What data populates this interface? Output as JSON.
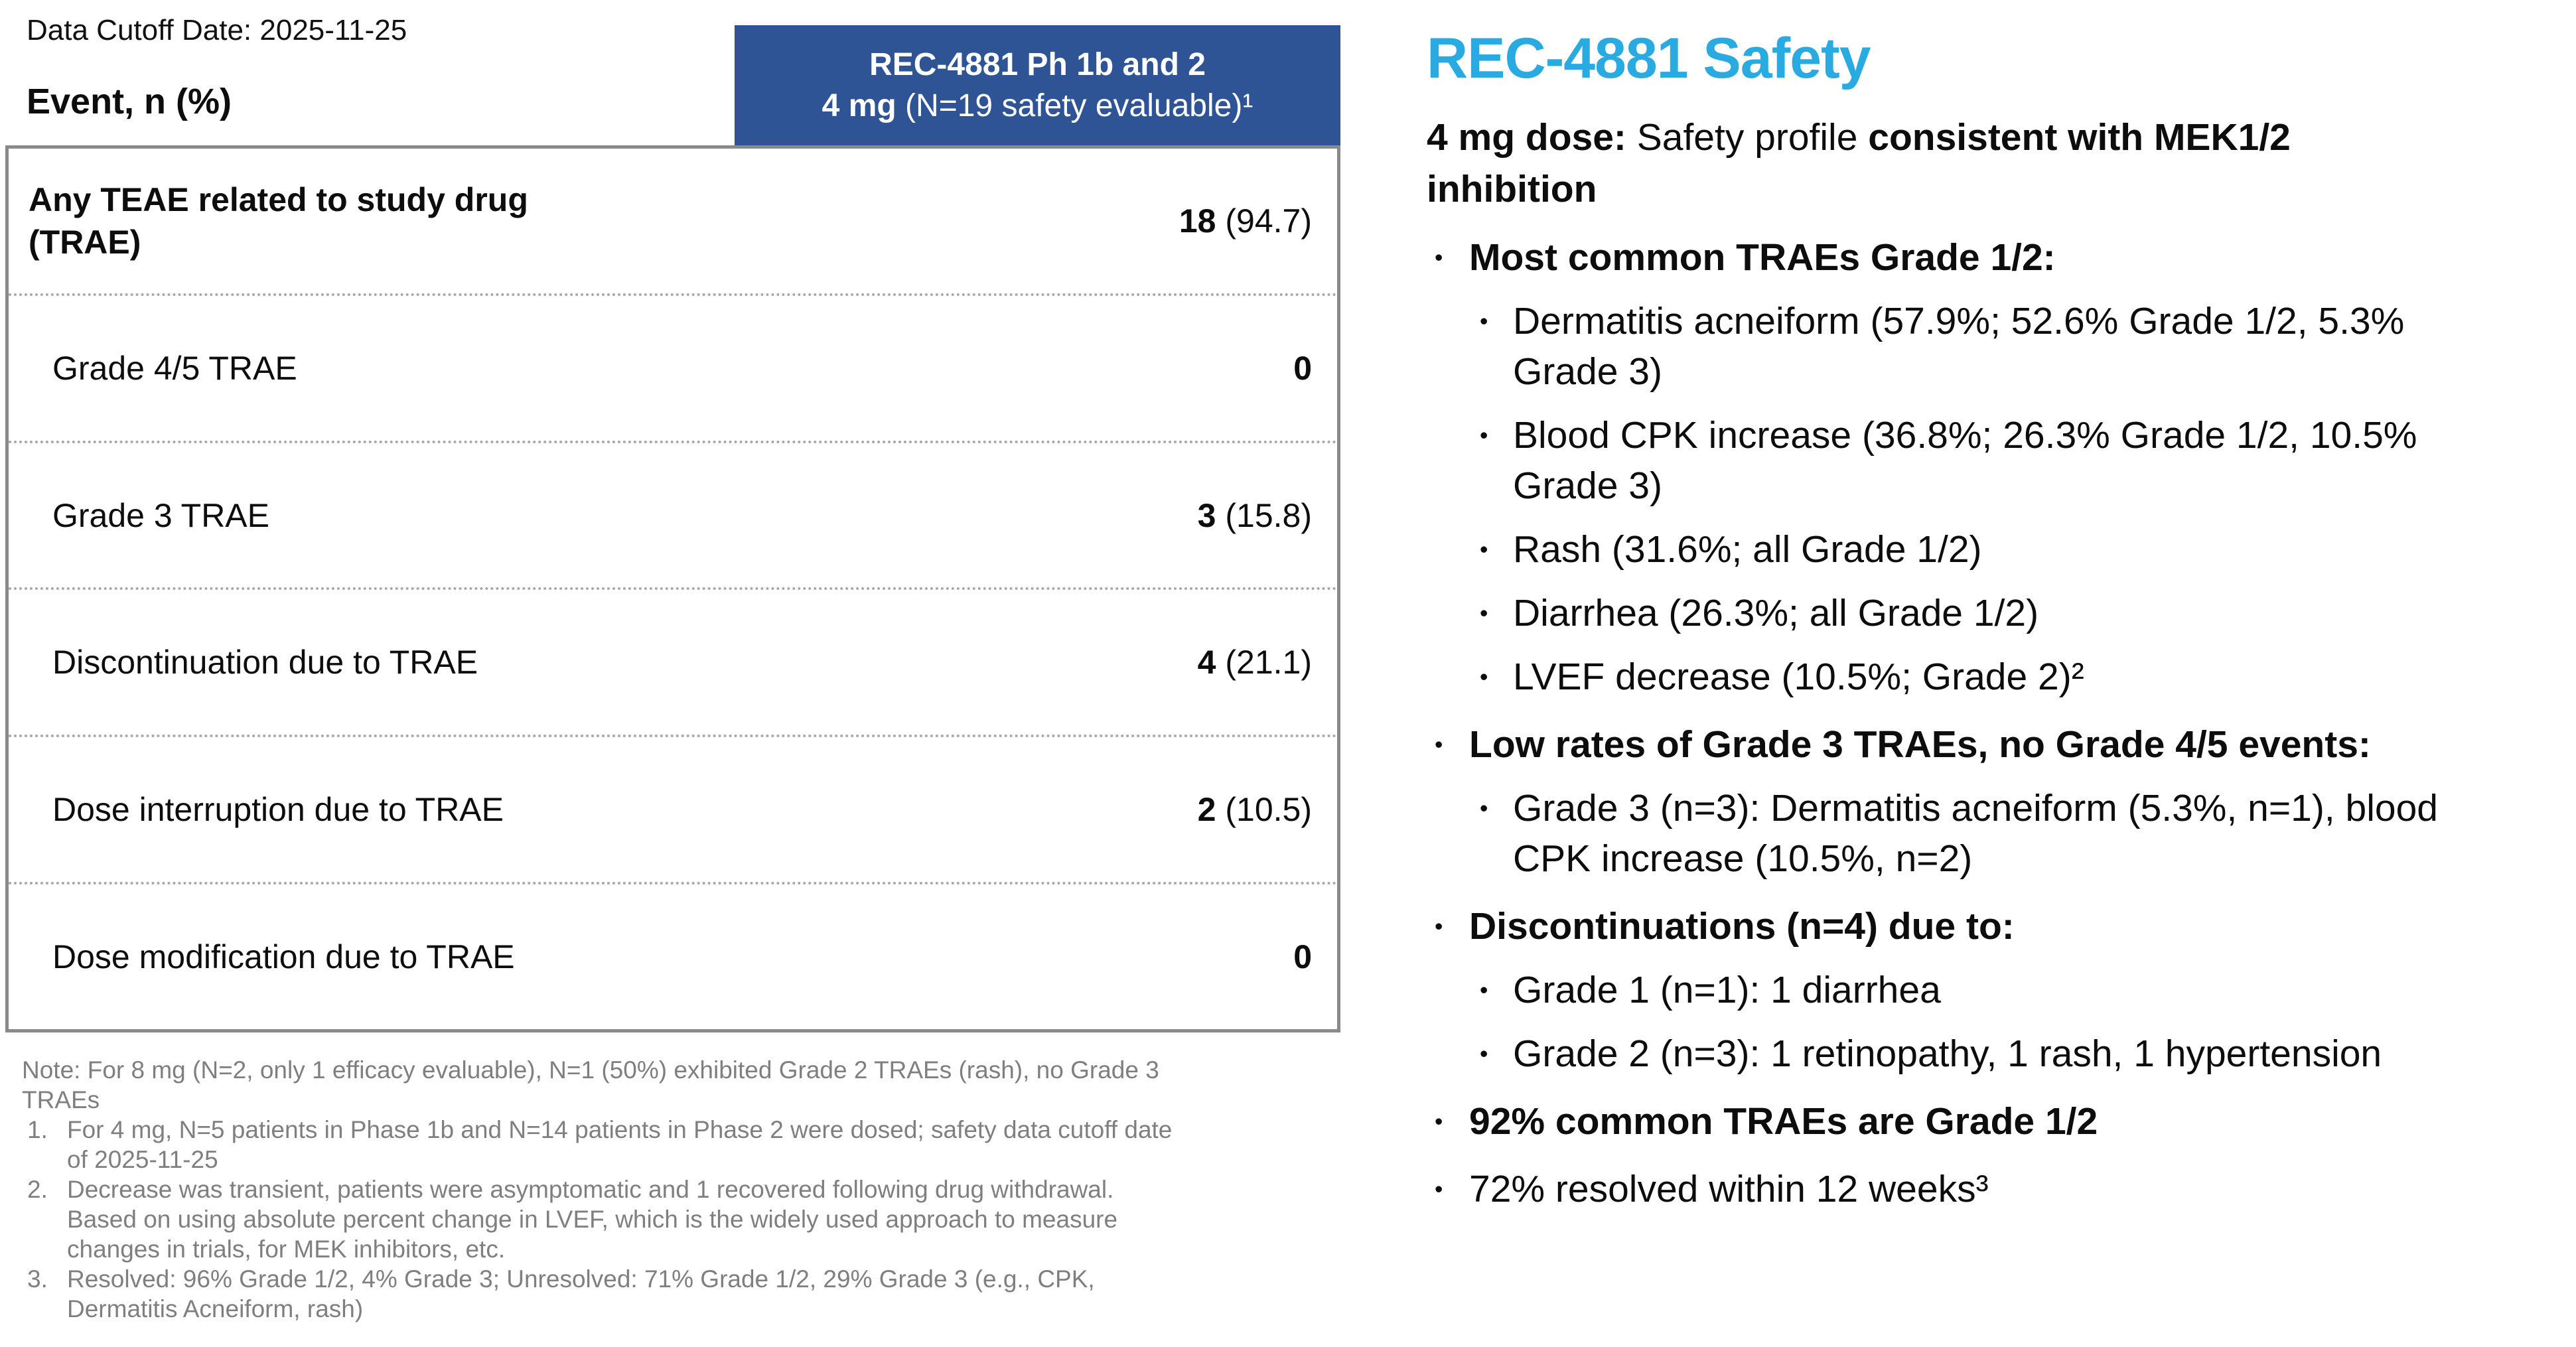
{
  "colors": {
    "header_blue": "#2F5496",
    "title_blue": "#29ABE2",
    "note_gray": "#7F7F7F",
    "table_border_gray": "#8A8A8A",
    "dotted_divider_gray": "#A8A8A8",
    "text": "#111111"
  },
  "table_panel": {
    "data_cutoff": "Data Cutoff Date: 2025-11-25",
    "event_header": "Event, n (%)",
    "column_header": {
      "line1": "REC-4881 Ph 1b and 2",
      "line2_bold": "4 mg ",
      "line2_rest": "(N=19 safety evaluable)¹"
    },
    "rows": [
      {
        "label": "Any TEAE related to study drug (TRAE)",
        "n": "18",
        "pct": " (94.7)"
      },
      {
        "label": "Grade 4/5 TRAE",
        "n": "0",
        "pct": ""
      },
      {
        "label": "Grade 3 TRAE",
        "n": "3",
        "pct": " (15.8)"
      },
      {
        "label": "Discontinuation due to TRAE",
        "n": "4",
        "pct": " (21.1)"
      },
      {
        "label": "Dose interruption due to TRAE",
        "n": "2",
        "pct": " (10.5)"
      },
      {
        "label": "Dose modification due to TRAE",
        "n": "0",
        "pct": ""
      }
    ],
    "notes": {
      "general": "Note: For 8 mg (N=2, only 1 efficacy evaluable), N=1 (50%) exhibited Grade 2 TRAEs (rash), no Grade 3 TRAEs",
      "numbered": [
        "For 4 mg, N=5 patients in Phase 1b and N=14 patients in Phase 2 were dosed; safety data cutoff date of 2025-11-25",
        "Decrease was transient, patients were asymptomatic and 1 recovered following drug withdrawal. Based on using absolute percent change in LVEF, which is the widely used approach to measure changes in trials, for MEK inhibitors, etc.",
        "Resolved: 96% Grade 1/2, 4% Grade 3; Unresolved: 71% Grade 1/2, 29% Grade 3 (e.g., CPK, Dermatitis Acneiform, rash)"
      ]
    }
  },
  "safety_panel": {
    "title": "REC-4881 Safety",
    "lead": [
      {
        "text": "4 mg dose: ",
        "bold": true
      },
      {
        "text": "Safety profile ",
        "bold": false
      },
      {
        "text": "consistent with MEK1/2 inhibition",
        "bold": true
      }
    ],
    "bullets": [
      {
        "text": "Most common TRAEs Grade 1/2:",
        "bold": true,
        "children": [
          "Dermatitis acneiform (57.9%; 52.6% Grade 1/2, 5.3% Grade 3)",
          "Blood CPK increase (36.8%; 26.3% Grade 1/2, 10.5% Grade 3)",
          "Rash (31.6%; all Grade 1/2)",
          "Diarrhea (26.3%; all Grade 1/2)",
          "LVEF decrease (10.5%; Grade 2)²"
        ]
      },
      {
        "text": "Low rates of Grade 3 TRAEs, no Grade 4/5 events:",
        "bold": true,
        "children": [
          "Grade 3 (n=3): Dermatitis acneiform (5.3%, n=1), blood CPK increase (10.5%, n=2)"
        ]
      },
      {
        "text": "Discontinuations (n=4) due to:",
        "bold": true,
        "children": [
          "Grade 1 (n=1): 1 diarrhea",
          "Grade 2 (n=3): 1 retinopathy, 1 rash, 1 hypertension"
        ]
      },
      {
        "text": "92% common TRAEs are Grade 1/2",
        "bold": true,
        "children": []
      },
      {
        "text": "72% resolved within 12 weeks³",
        "bold": false,
        "children": []
      }
    ]
  }
}
